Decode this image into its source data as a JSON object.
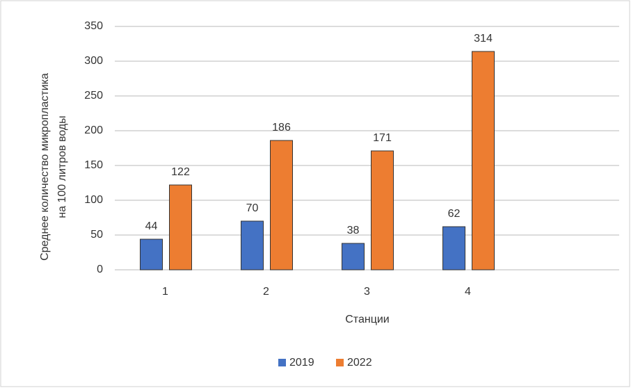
{
  "chart_data": {
    "type": "bar",
    "y_label": [
      "Среднее количество микропластика",
      "на 100 литров воды"
    ],
    "x_label": "Станции",
    "categories": [
      "1",
      "2",
      "3",
      "4",
      null
    ],
    "series": [
      {
        "name": "2019",
        "color": "#4472c4",
        "values": [
          44,
          70,
          38,
          62,
          null
        ]
      },
      {
        "name": "2022",
        "color": "#ed7d31",
        "values": [
          122,
          186,
          171,
          314,
          null
        ]
      }
    ],
    "ylim": [
      0,
      350
    ],
    "yticks": [
      0,
      50,
      100,
      150,
      200,
      250,
      300,
      350
    ],
    "grid": true,
    "legend": "bottom",
    "data_labels": true
  }
}
